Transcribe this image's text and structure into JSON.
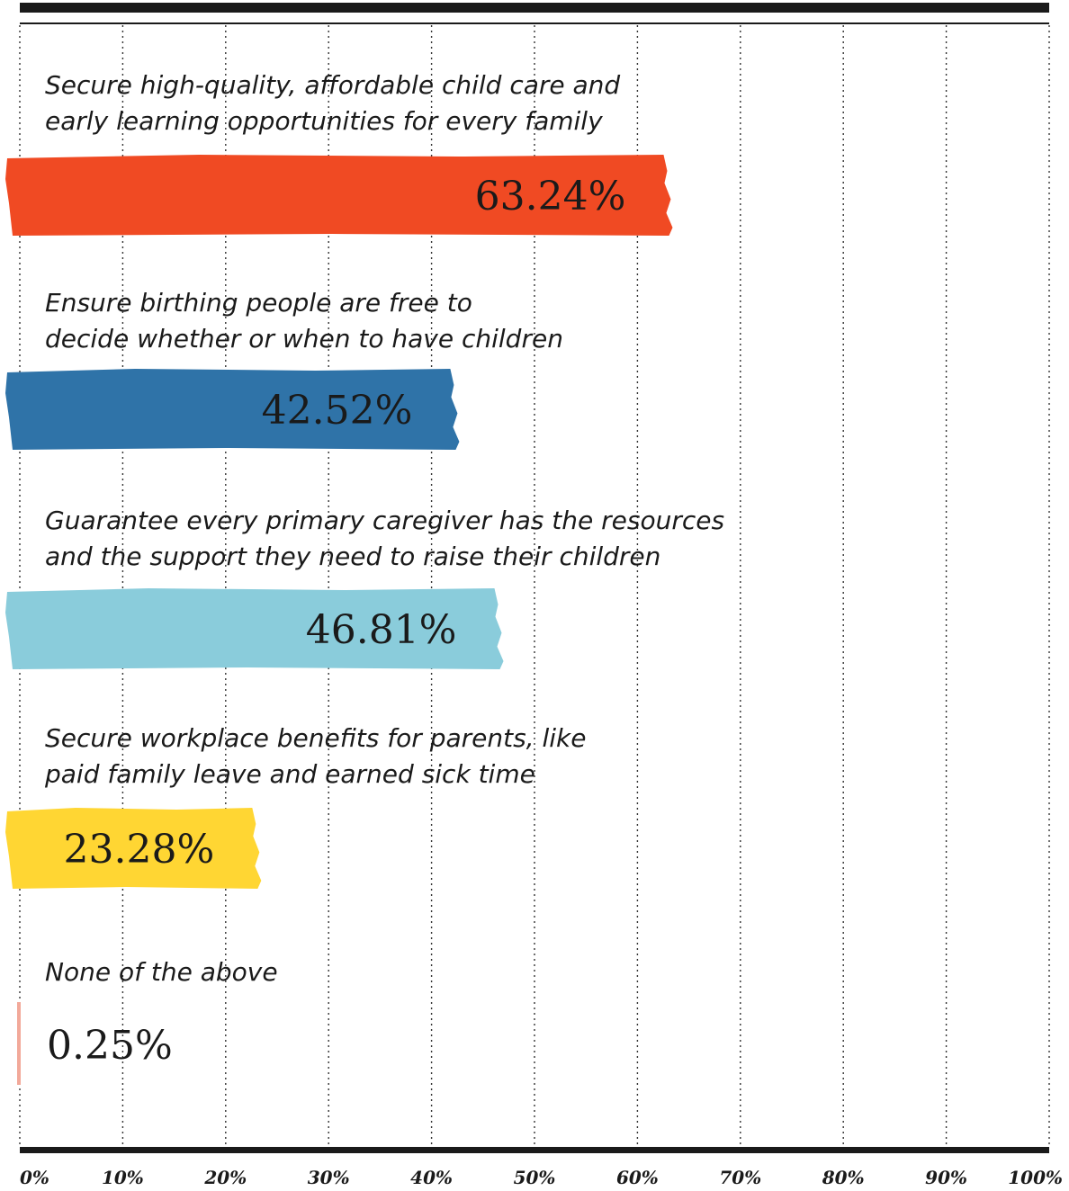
{
  "chart_data": {
    "type": "bar",
    "orientation": "horizontal",
    "categories": [
      [
        "Secure high-quality, affordable child care and",
        "early learning opportunities for every family"
      ],
      [
        "Ensure birthing people are free to",
        "decide whether or when to have children"
      ],
      [
        "Guarantee every primary caregiver has the resources",
        "and the support they need to raise their children"
      ],
      [
        "Secure workplace benefits for parents, like",
        "paid family leave and earned sick time"
      ],
      [
        "None of the above"
      ]
    ],
    "values": [
      63.24,
      42.52,
      46.81,
      23.28,
      0.25
    ],
    "value_labels": [
      "63.24%",
      "42.52%",
      "46.81%",
      "23.28%",
      "0.25%"
    ],
    "colors": [
      "#f04a23",
      "#2f73a8",
      "#8accdb",
      "#ffd633",
      "#f2a99a"
    ],
    "xlim": [
      0,
      100
    ],
    "x_ticks": [
      "0%",
      "10%",
      "20%",
      "30%",
      "40%",
      "50%",
      "60%",
      "70%",
      "80%",
      "90%",
      "100%"
    ],
    "grid": true
  }
}
